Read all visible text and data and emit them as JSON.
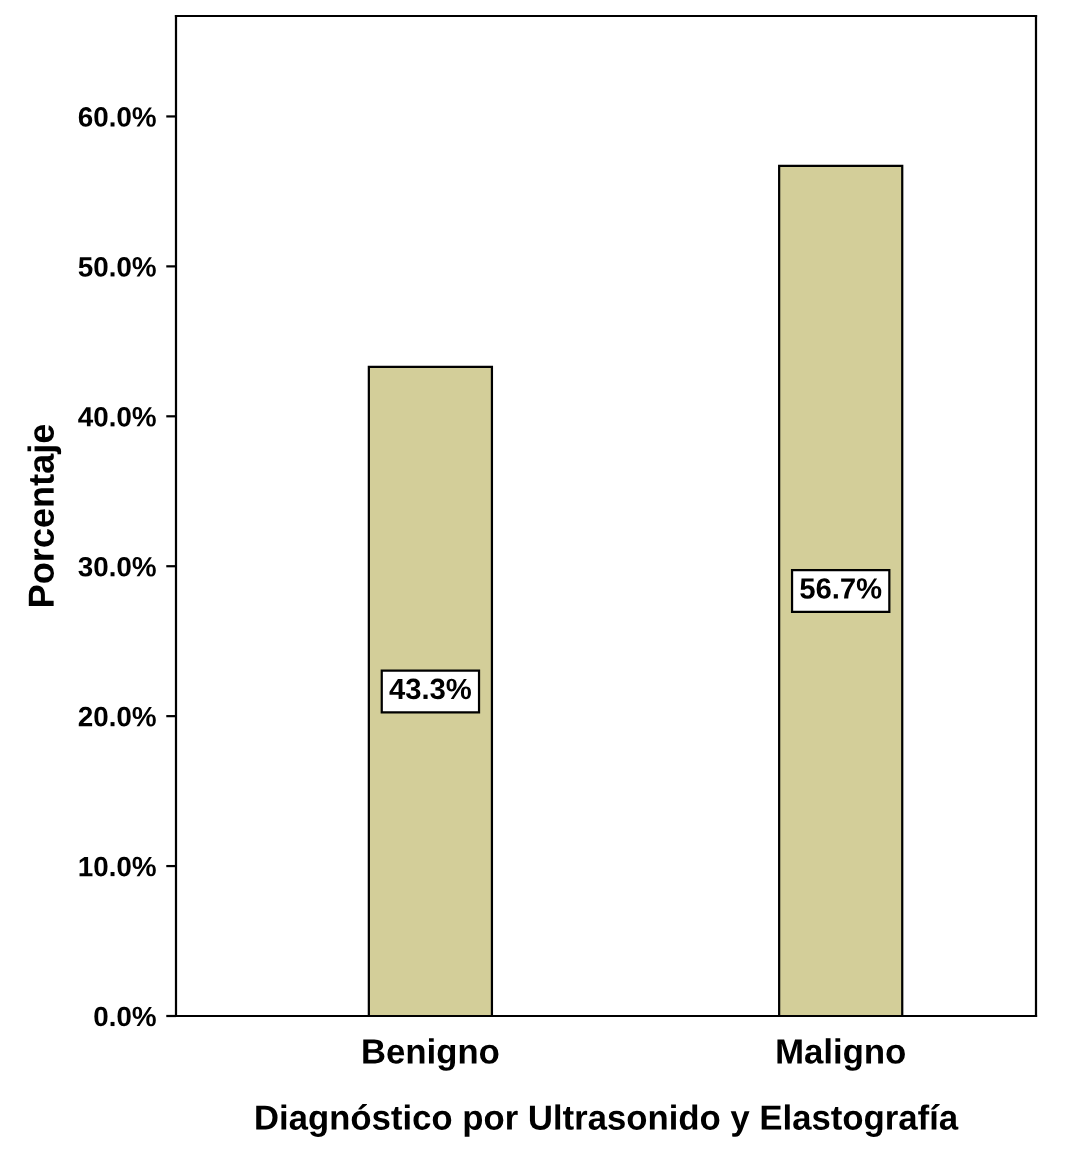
{
  "chart_data": {
    "type": "bar",
    "xlabel": "Diagnóstico por Ultrasonido y Elastografía",
    "ylabel": "Porcentaje",
    "categories": [
      "Benigno",
      "Maligno"
    ],
    "values": [
      43.3,
      56.7
    ],
    "color": "#d3ce99",
    "value_labels": [
      "43.3%",
      "56.7%"
    ],
    "ylim": [
      0,
      66.7
    ],
    "yticks": [
      {
        "value": 0,
        "label": "0.0%"
      },
      {
        "value": 10,
        "label": "10.0%"
      },
      {
        "value": 20,
        "label": "20.0%"
      },
      {
        "value": 30,
        "label": "30.0%"
      },
      {
        "value": 40,
        "label": "40.0%"
      },
      {
        "value": 50,
        "label": "50.0%"
      },
      {
        "value": 60,
        "label": "60.0%"
      }
    ],
    "grid": false,
    "legend": false
  }
}
